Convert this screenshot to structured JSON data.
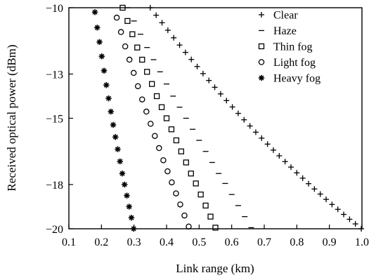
{
  "chart_data": {
    "type": "scatter",
    "xlabel": "Link range (km)",
    "ylabel": "Received optical power (dBm)",
    "xlim": [
      0.1,
      1.0
    ],
    "ylim": [
      -20,
      -10
    ],
    "x_ticks": [
      "0.1",
      "0.2",
      "0.3",
      "0.4",
      "0.5",
      "0.6",
      "0.7",
      "0.8",
      "0.9",
      "1.0"
    ],
    "x_tick_values": [
      0.1,
      0.2,
      0.3,
      0.4,
      0.5,
      0.6,
      0.7,
      0.8,
      0.9,
      1.0
    ],
    "y_ticks": [
      "−20",
      "−18",
      "−15",
      "−13",
      "−10"
    ],
    "y_tick_values": [
      -20,
      -18,
      -15,
      -13,
      -10
    ],
    "grid": false,
    "legend_position": "top-right",
    "series": [
      {
        "name": "Clear",
        "marker": "plus",
        "points": [
          [
            0.35,
            -10.0
          ],
          [
            0.368,
            -10.34
          ],
          [
            0.386,
            -10.68
          ],
          [
            0.404,
            -11.02
          ],
          [
            0.422,
            -11.36
          ],
          [
            0.44,
            -11.69
          ],
          [
            0.458,
            -12.02
          ],
          [
            0.476,
            -12.34
          ],
          [
            0.494,
            -12.66
          ],
          [
            0.512,
            -12.98
          ],
          [
            0.53,
            -13.29
          ],
          [
            0.548,
            -13.6
          ],
          [
            0.566,
            -13.9
          ],
          [
            0.584,
            -14.2
          ],
          [
            0.602,
            -14.49
          ],
          [
            0.62,
            -14.78
          ],
          [
            0.638,
            -15.07
          ],
          [
            0.656,
            -15.35
          ],
          [
            0.674,
            -15.63
          ],
          [
            0.692,
            -15.9
          ],
          [
            0.71,
            -16.17
          ],
          [
            0.728,
            -16.44
          ],
          [
            0.746,
            -16.7
          ],
          [
            0.764,
            -16.96
          ],
          [
            0.782,
            -17.21
          ],
          [
            0.8,
            -17.47
          ],
          [
            0.818,
            -17.71
          ],
          [
            0.836,
            -17.96
          ],
          [
            0.854,
            -18.2
          ],
          [
            0.872,
            -18.43
          ],
          [
            0.89,
            -18.67
          ],
          [
            0.908,
            -18.9
          ],
          [
            0.926,
            -19.12
          ],
          [
            0.944,
            -19.35
          ],
          [
            0.962,
            -19.57
          ],
          [
            0.98,
            -19.78
          ],
          [
            0.998,
            -20.0
          ]
        ]
      },
      {
        "name": "Haze",
        "marker": "dash",
        "points": [
          [
            0.28,
            -10.0
          ],
          [
            0.3,
            -10.6
          ],
          [
            0.32,
            -11.2
          ],
          [
            0.34,
            -11.8
          ],
          [
            0.36,
            -12.35
          ],
          [
            0.38,
            -12.9
          ],
          [
            0.4,
            -13.45
          ],
          [
            0.42,
            -14.0
          ],
          [
            0.44,
            -14.5
          ],
          [
            0.46,
            -15.0
          ],
          [
            0.48,
            -15.5
          ],
          [
            0.5,
            -16.0
          ],
          [
            0.52,
            -16.5
          ],
          [
            0.54,
            -17.0
          ],
          [
            0.56,
            -17.5
          ],
          [
            0.58,
            -17.95
          ],
          [
            0.6,
            -18.45
          ],
          [
            0.62,
            -18.95
          ],
          [
            0.64,
            -19.45
          ],
          [
            0.66,
            -19.95
          ]
        ]
      },
      {
        "name": "Thin fog",
        "marker": "square",
        "points": [
          [
            0.265,
            -10.0
          ],
          [
            0.28,
            -10.6
          ],
          [
            0.295,
            -11.2
          ],
          [
            0.31,
            -11.8
          ],
          [
            0.325,
            -12.35
          ],
          [
            0.34,
            -12.9
          ],
          [
            0.355,
            -13.45
          ],
          [
            0.37,
            -14.0
          ],
          [
            0.385,
            -14.5
          ],
          [
            0.4,
            -15.0
          ],
          [
            0.415,
            -15.5
          ],
          [
            0.43,
            -16.0
          ],
          [
            0.445,
            -16.5
          ],
          [
            0.46,
            -17.0
          ],
          [
            0.475,
            -17.5
          ],
          [
            0.49,
            -17.95
          ],
          [
            0.505,
            -18.45
          ],
          [
            0.52,
            -18.95
          ],
          [
            0.535,
            -19.45
          ],
          [
            0.55,
            -19.95
          ]
        ]
      },
      {
        "name": "Light fog",
        "marker": "circle",
        "points": [
          [
            0.247,
            -10.45
          ],
          [
            0.26,
            -11.1
          ],
          [
            0.273,
            -11.75
          ],
          [
            0.286,
            -12.35
          ],
          [
            0.299,
            -12.95
          ],
          [
            0.312,
            -13.55
          ],
          [
            0.325,
            -14.15
          ],
          [
            0.338,
            -14.7
          ],
          [
            0.351,
            -15.25
          ],
          [
            0.364,
            -15.8
          ],
          [
            0.377,
            -16.35
          ],
          [
            0.39,
            -16.9
          ],
          [
            0.403,
            -17.4
          ],
          [
            0.416,
            -17.9
          ],
          [
            0.429,
            -18.4
          ],
          [
            0.442,
            -18.9
          ],
          [
            0.455,
            -19.4
          ],
          [
            0.468,
            -19.9
          ]
        ]
      },
      {
        "name": "Heavy fog",
        "marker": "asterisk",
        "points": [
          [
            0.18,
            -10.2
          ],
          [
            0.187,
            -10.9
          ],
          [
            0.194,
            -11.55
          ],
          [
            0.201,
            -12.2
          ],
          [
            0.208,
            -12.85
          ],
          [
            0.215,
            -13.5
          ],
          [
            0.222,
            -14.1
          ],
          [
            0.229,
            -14.7
          ],
          [
            0.236,
            -15.3
          ],
          [
            0.243,
            -15.85
          ],
          [
            0.25,
            -16.4
          ],
          [
            0.257,
            -16.95
          ],
          [
            0.264,
            -17.5
          ],
          [
            0.271,
            -18.0
          ],
          [
            0.278,
            -18.5
          ],
          [
            0.285,
            -19.0
          ],
          [
            0.292,
            -19.5
          ],
          [
            0.299,
            -20.0
          ]
        ]
      }
    ]
  }
}
